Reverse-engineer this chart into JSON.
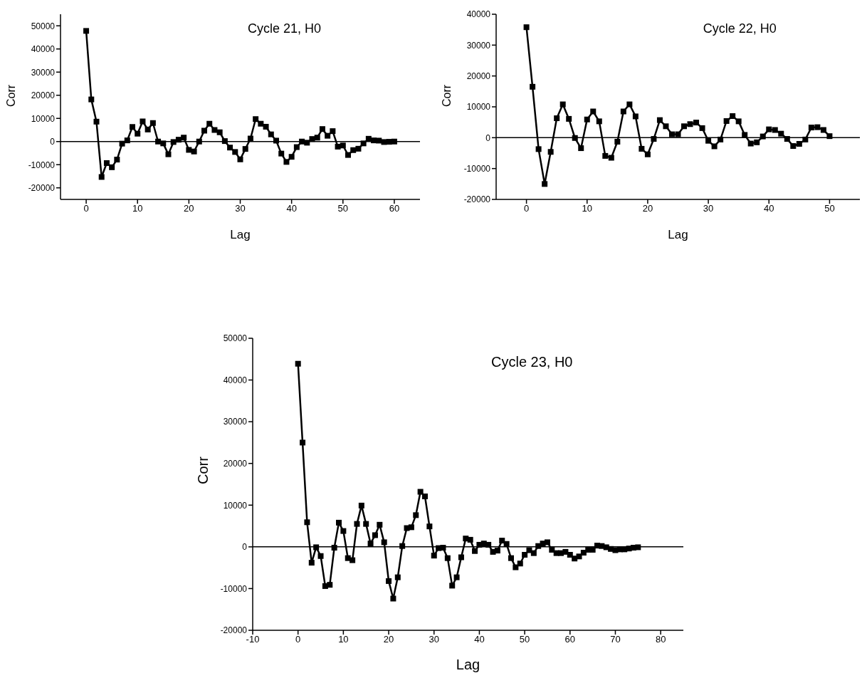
{
  "chart_data": [
    {
      "type": "line",
      "title": "Cycle 21, H0",
      "xlabel": "Lag",
      "ylabel": "Corr",
      "marker": "square",
      "line_style": "solid",
      "grid": false,
      "legend": false,
      "x": [
        0,
        1,
        2,
        3,
        4,
        5,
        6,
        7,
        8,
        9,
        10,
        11,
        12,
        13,
        14,
        15,
        16,
        17,
        18,
        19,
        20,
        21,
        22,
        23,
        24,
        25,
        26,
        27,
        28,
        29,
        30,
        31,
        32,
        33,
        34,
        35,
        36,
        37,
        38,
        39,
        40,
        41,
        42,
        43,
        44,
        45,
        46,
        47,
        48,
        49,
        50,
        51,
        52,
        53,
        54,
        55,
        56,
        57,
        58,
        59,
        60
      ],
      "series": [
        {
          "color": "#000000",
          "values": [
            47800,
            18200,
            8600,
            -15300,
            -9300,
            -11100,
            -7800,
            -900,
            500,
            6300,
            3400,
            8700,
            5200,
            8000,
            0,
            -800,
            -5500,
            -200,
            800,
            1700,
            -3600,
            -4300,
            0,
            4700,
            7700,
            5000,
            4000,
            200,
            -2600,
            -4500,
            -7700,
            -3200,
            1300,
            9700,
            7700,
            6400,
            3100,
            400,
            -5200,
            -8800,
            -6600,
            -2400,
            0,
            -500,
            1100,
            1700,
            5400,
            2500,
            4500,
            -2200,
            -1700,
            -5800,
            -3700,
            -3100,
            -800,
            1200,
            500,
            400,
            -200,
            -100,
            0
          ]
        }
      ],
      "xlim": [
        -5,
        65
      ],
      "xticks": [
        0,
        10,
        20,
        30,
        40,
        50,
        60
      ],
      "ylim": [
        -25000,
        55000
      ],
      "yticks": [
        -20000,
        -10000,
        0,
        10000,
        20000,
        30000,
        40000,
        50000
      ],
      "ref_lines": [
        {
          "axis": "y",
          "value": 0
        }
      ]
    },
    {
      "type": "line",
      "title": "Cycle 22, H0",
      "xlabel": "Lag",
      "ylabel": "Corr",
      "marker": "square",
      "line_style": "solid",
      "grid": false,
      "legend": false,
      "x": [
        0,
        1,
        2,
        3,
        4,
        5,
        6,
        7,
        8,
        9,
        10,
        11,
        12,
        13,
        14,
        15,
        16,
        17,
        18,
        19,
        20,
        21,
        22,
        23,
        24,
        25,
        26,
        27,
        28,
        29,
        30,
        31,
        32,
        33,
        34,
        35,
        36,
        37,
        38,
        39,
        40,
        41,
        42,
        43,
        44,
        45,
        46,
        47,
        48,
        49,
        50
      ],
      "series": [
        {
          "color": "#000000",
          "values": [
            35800,
            16500,
            -3700,
            -15000,
            -4600,
            6300,
            10800,
            6100,
            -100,
            -3400,
            5900,
            8500,
            5300,
            -5900,
            -6500,
            -1300,
            8500,
            10800,
            6900,
            -3600,
            -5400,
            -400,
            5700,
            3700,
            1100,
            1100,
            3700,
            4400,
            4900,
            3100,
            -1000,
            -2800,
            -600,
            5400,
            7000,
            5300,
            900,
            -1900,
            -1500,
            400,
            2700,
            2500,
            1300,
            -400,
            -2700,
            -2000,
            -600,
            3300,
            3400,
            2500,
            500
          ]
        }
      ],
      "xlim": [
        -5,
        55
      ],
      "xticks": [
        0,
        10,
        20,
        30,
        40,
        50
      ],
      "ylim": [
        -20000,
        40000
      ],
      "yticks": [
        -20000,
        -10000,
        0,
        10000,
        20000,
        30000,
        40000
      ],
      "ref_lines": [
        {
          "axis": "y",
          "value": 0
        }
      ]
    },
    {
      "type": "line",
      "title": "Cycle 23, H0",
      "xlabel": "Lag",
      "ylabel": "Corr",
      "marker": "square",
      "line_style": "solid",
      "grid": false,
      "legend": false,
      "x": [
        0,
        1,
        2,
        3,
        4,
        5,
        6,
        7,
        8,
        9,
        10,
        11,
        12,
        13,
        14,
        15,
        16,
        17,
        18,
        19,
        20,
        21,
        22,
        23,
        24,
        25,
        26,
        27,
        28,
        29,
        30,
        31,
        32,
        33,
        34,
        35,
        36,
        37,
        38,
        39,
        40,
        41,
        42,
        43,
        44,
        45,
        46,
        47,
        48,
        49,
        50,
        51,
        52,
        53,
        54,
        55,
        56,
        57,
        58,
        59,
        60,
        61,
        62,
        63,
        64,
        65,
        66,
        67,
        68,
        69,
        70,
        71,
        72,
        73,
        74,
        75
      ],
      "series": [
        {
          "color": "#000000",
          "values": [
            43900,
            25000,
            5900,
            -3800,
            -100,
            -2200,
            -9400,
            -9100,
            -200,
            5800,
            3800,
            -2700,
            -3200,
            5500,
            9900,
            5500,
            800,
            2800,
            5300,
            1100,
            -8200,
            -12400,
            -7300,
            200,
            4500,
            4700,
            7600,
            13200,
            12100,
            4900,
            -2100,
            -300,
            -200,
            -2700,
            -9300,
            -7300,
            -2500,
            2000,
            1700,
            -1000,
            500,
            800,
            500,
            -1200,
            -900,
            1500,
            700,
            -2700,
            -4900,
            -4000,
            -1900,
            -800,
            -1500,
            200,
            800,
            1100,
            -700,
            -1500,
            -1500,
            -1200,
            -1900,
            -2800,
            -2300,
            -1400,
            -700,
            -700,
            300,
            200,
            -100,
            -500,
            -800,
            -600,
            -600,
            -400,
            -200,
            -100
          ]
        }
      ],
      "xlim": [
        -10,
        85
      ],
      "xticks": [
        -10,
        0,
        10,
        20,
        30,
        40,
        50,
        60,
        70,
        80
      ],
      "ylim": [
        -20000,
        50000
      ],
      "yticks": [
        -20000,
        -10000,
        0,
        10000,
        20000,
        30000,
        40000,
        50000
      ],
      "ref_lines": [
        {
          "axis": "y",
          "value": 0
        }
      ]
    }
  ]
}
